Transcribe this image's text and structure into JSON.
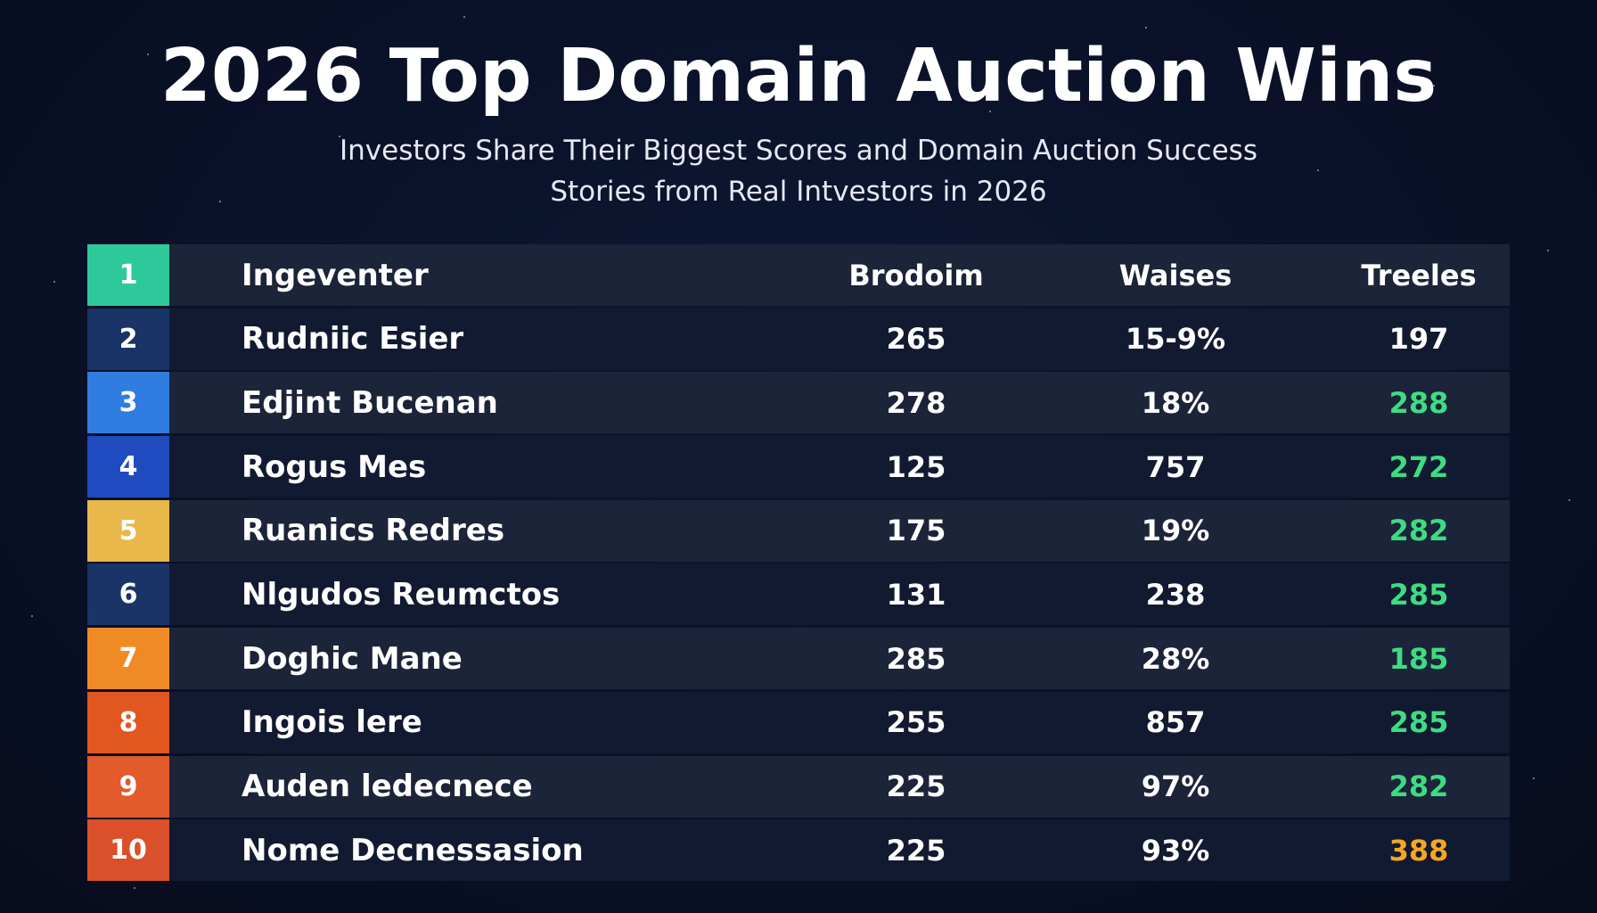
{
  "title": "2026 Top Domain Auction Wins",
  "subtitle_line1": "Investors Share Their Biggest Scores and Domain Auction Success",
  "subtitle_line2": "Stories from Real Intvestors in 2026",
  "colors": {
    "background": "#0a1128",
    "green_value": "#3ddc84",
    "orange_value": "#f5a623",
    "white_value": "#ffffff"
  },
  "header": {
    "rank": "1",
    "rank_color": "#2ec99a",
    "name": "Ingeventer",
    "col1": "Brodoim",
    "col2": "Waises",
    "col3": "Treeles"
  },
  "rows": [
    {
      "rank": "2",
      "rank_color": "#1a3467",
      "name": "Rudniic Esier",
      "col1": "265",
      "col2": "15-9%",
      "col3": "197",
      "col3_color": "#ffffff"
    },
    {
      "rank": "3",
      "rank_color": "#2f7de1",
      "name": "Edjint Bucenan",
      "col1": "278",
      "col2": "18%",
      "col3": "288",
      "col3_color": "#3ddc84"
    },
    {
      "rank": "4",
      "rank_color": "#1f4bbf",
      "name": "Rogus Mes",
      "col1": "125",
      "col2": "757",
      "col3": "272",
      "col3_color": "#3ddc84"
    },
    {
      "rank": "5",
      "rank_color": "#e8b84b",
      "name": "Ruanics Redres",
      "col1": "175",
      "col2": "19%",
      "col3": "282",
      "col3_color": "#3ddc84"
    },
    {
      "rank": "6",
      "rank_color": "#1a3467",
      "name": "Nlgudos Reumctos",
      "col1": "131",
      "col2": "238",
      "col3": "285",
      "col3_color": "#3ddc84"
    },
    {
      "rank": "7",
      "rank_color": "#ef8a25",
      "name": "Doghic Mane",
      "col1": "285",
      "col2": "28%",
      "col3": "185",
      "col3_color": "#3ddc84"
    },
    {
      "rank": "8",
      "rank_color": "#e2561f",
      "name": "Ingois lere",
      "col1": "255",
      "col2": "857",
      "col3": "285",
      "col3_color": "#3ddc84"
    },
    {
      "rank": "9",
      "rank_color": "#e35a2b",
      "name": "Auden ledecnece",
      "col1": "225",
      "col2": "97%",
      "col3": "282",
      "col3_color": "#3ddc84"
    },
    {
      "rank": "10",
      "rank_color": "#d9502a",
      "name": "Nome Decnessasion",
      "col1": "225",
      "col2": "93%",
      "col3": "388",
      "col3_color": "#f5a623"
    }
  ]
}
